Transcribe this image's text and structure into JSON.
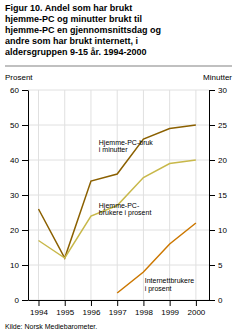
{
  "chart_data": {
    "type": "line",
    "title": [
      "Figur 10. Andel som har brukt",
      "hjemme-PC og minutter brukt til",
      "hjemme-PC en gjennomsnittsdag og",
      "andre som har brukt internett, i",
      "aldersgruppen 9-15 år. 1994-2000"
    ],
    "ylabel": "Prosent",
    "y2label": "Minutter",
    "source": "Kilde: Norsk Mediebarometer.",
    "x": [
      1994,
      1995,
      1996,
      1997,
      1998,
      1999,
      2000
    ],
    "xlim": [
      1993.6,
      2000.5
    ],
    "xticks": [
      1994,
      1995,
      1996,
      1997,
      1998,
      1999,
      2000
    ],
    "ylim": [
      0,
      60
    ],
    "yticks": [
      0,
      10,
      20,
      30,
      40,
      50,
      60
    ],
    "y2lim": [
      0,
      30
    ],
    "y2ticks": [
      0,
      5,
      10,
      15,
      20,
      25,
      30
    ],
    "grid": true,
    "series": [
      {
        "color": "#8B6000",
        "axis": "y2",
        "values": [
          13,
          6,
          17,
          18,
          23,
          24.5,
          25
        ]
      },
      {
        "color": "#C8B84A",
        "axis": "y",
        "values": [
          17,
          12,
          24,
          27,
          35,
          39,
          40
        ]
      },
      {
        "color": "#CC7700",
        "axis": "y",
        "values": [
          null,
          null,
          null,
          2,
          8,
          16,
          22
        ]
      }
    ],
    "annotations": [
      {
        "text": [
          "Hjemme-PC-bruk",
          "i minutter"
        ],
        "x": 1996.3,
        "y": 46
      },
      {
        "text": [
          "Hjemme-PC-",
          "brukere i prosent"
        ],
        "x": 1996.3,
        "y": 28
      },
      {
        "text": [
          "Internettbrukere",
          "i prosent"
        ],
        "x": 1998.05,
        "y": 6.5
      }
    ]
  }
}
